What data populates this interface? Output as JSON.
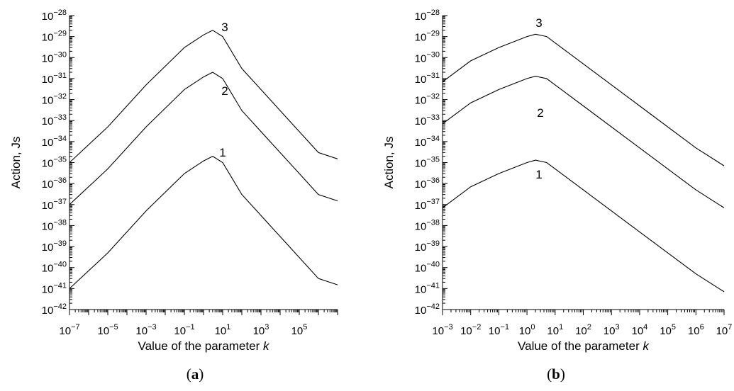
{
  "chart_data": [
    {
      "type": "line",
      "caption": "(a)",
      "xlabel": "Value of the parameter",
      "xlabel_var": "k",
      "ylabel": "Action, Js",
      "xscale": "log",
      "yscale": "log",
      "xlim": [
        1e-07,
        10000000.0
      ],
      "ylim": [
        1e-42,
        1e-28
      ],
      "x_tick_exponents": [
        -7,
        -5,
        -3,
        -1,
        1,
        3,
        5
      ],
      "y_tick_exponents": [
        -42,
        -41,
        -40,
        -39,
        -38,
        -37,
        -36,
        -35,
        -34,
        -33,
        -32,
        -31,
        -30,
        -29,
        -28
      ],
      "series": [
        {
          "name": "1",
          "x": [
            1e-07,
            1e-05,
            0.001,
            0.1,
            1,
            3,
            10,
            100,
            10000.0,
            1000000.0,
            10000000.0
          ],
          "y": [
            1e-41,
            5e-40,
            5e-38,
            3e-36,
            1.2e-35,
            2e-35,
            1e-35,
            3e-37,
            3e-39,
            3e-41,
            1.5e-41
          ]
        },
        {
          "name": "2",
          "x": [
            1e-07,
            1e-05,
            0.001,
            0.1,
            1,
            3,
            10,
            100,
            10000.0,
            1000000.0,
            10000000.0
          ],
          "y": [
            1e-37,
            5e-36,
            5e-34,
            3e-32,
            1.2e-31,
            2e-31,
            1e-31,
            3e-33,
            3e-35,
            3e-37,
            1.5e-37
          ]
        },
        {
          "name": "3",
          "x": [
            1e-07,
            1e-05,
            0.001,
            0.1,
            1,
            3,
            10,
            100,
            10000.0,
            1000000.0,
            10000000.0
          ],
          "y": [
            1e-35,
            5e-34,
            5e-32,
            3e-30,
            1.2e-29,
            2e-29,
            1e-29,
            3e-31,
            3e-33,
            3e-35,
            1.5e-35
          ]
        }
      ]
    },
    {
      "type": "line",
      "caption": "(b)",
      "xlabel": "Value of the parameter",
      "xlabel_var": "k",
      "ylabel": "Action, Js",
      "xscale": "log",
      "yscale": "log",
      "xlim": [
        0.001,
        10000000.0
      ],
      "ylim": [
        1e-42,
        1e-28
      ],
      "x_tick_exponents": [
        -3,
        -2,
        -1,
        0,
        1,
        2,
        3,
        4,
        5,
        6,
        7
      ],
      "y_tick_exponents": [
        -42,
        -41,
        -40,
        -39,
        -38,
        -37,
        -36,
        -35,
        -34,
        -33,
        -32,
        -31,
        -30,
        -29,
        -28
      ],
      "series": [
        {
          "name": "1",
          "x": [
            0.001,
            0.01,
            0.1,
            1,
            2,
            5,
            10,
            100,
            10000.0,
            1000000.0,
            10000000.0
          ],
          "y": [
            7e-38,
            7e-37,
            3e-36,
            1e-35,
            1.3e-35,
            1e-35,
            5e-36,
            5e-37,
            5e-39,
            5e-41,
            7e-42
          ]
        },
        {
          "name": "2",
          "x": [
            0.001,
            0.01,
            0.1,
            1,
            2,
            5,
            10,
            100,
            10000.0,
            1000000.0,
            10000000.0
          ],
          "y": [
            7e-34,
            7e-33,
            3e-32,
            1e-31,
            1.3e-31,
            1e-31,
            5e-32,
            5e-33,
            5e-35,
            5e-37,
            7e-38
          ]
        },
        {
          "name": "3",
          "x": [
            0.001,
            0.01,
            0.1,
            1,
            2,
            5,
            10,
            100,
            10000.0,
            1000000.0,
            10000000.0
          ],
          "y": [
            7e-32,
            7e-31,
            3e-30,
            1e-29,
            1.3e-29,
            1e-29,
            5e-30,
            5e-31,
            5e-33,
            5e-35,
            7e-36
          ]
        }
      ]
    }
  ]
}
